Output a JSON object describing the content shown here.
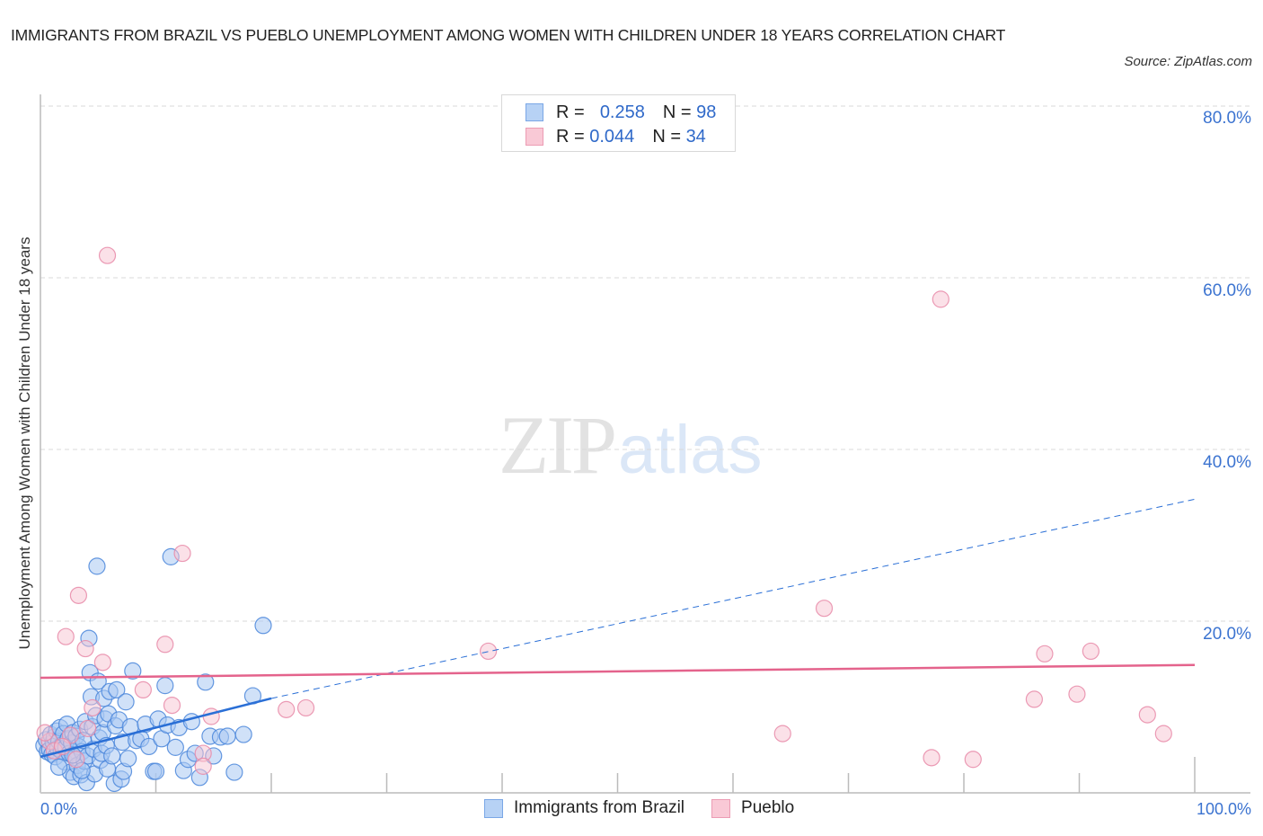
{
  "header": {
    "title": "IMMIGRANTS FROM BRAZIL VS PUEBLO UNEMPLOYMENT AMONG WOMEN WITH CHILDREN UNDER 18 YEARS CORRELATION CHART",
    "source": "Source: ZipAtlas.com"
  },
  "watermark": {
    "zip": "ZIP",
    "atlas": "atlas"
  },
  "legend": {
    "rows": [
      {
        "r_label": "R =",
        "r_value": "0.258",
        "n_label": "N =",
        "n_value": "98",
        "color": "#b7d2f5"
      },
      {
        "r_label": "R =",
        "r_value": "0.044",
        "n_label": "N =",
        "n_value": "34",
        "color": "#f9c9d6"
      }
    ],
    "series": [
      {
        "label": "Immigrants from Brazil",
        "color": "#b7d2f5"
      },
      {
        "label": "Pueblo",
        "color": "#f9c9d6"
      }
    ]
  },
  "axes": {
    "ylabel": "Unemployment Among Women with Children Under 18 years",
    "y_ticks": [
      "80.0%",
      "60.0%",
      "40.0%",
      "20.0%"
    ],
    "x_ticks": [
      "0.0%",
      "100.0%"
    ]
  },
  "colors": {
    "blue_fill": "#a9c8f2",
    "blue_stroke": "#4a86da",
    "blue_line": "#2a6fd6",
    "pink_fill": "#f7c3d2",
    "pink_stroke": "#e88aa8",
    "pink_line": "#e4638c",
    "tick_label": "#3b73d0",
    "grid": "#d9d9d9"
  },
  "chart_data": {
    "type": "scatter",
    "title": "IMMIGRANTS FROM BRAZIL VS PUEBLO UNEMPLOYMENT AMONG WOMEN WITH CHILDREN UNDER 18 YEARS CORRELATION CHART",
    "xlabel": "",
    "ylabel": "Unemployment Among Women with Children Under 18 years",
    "xlim": [
      0,
      100
    ],
    "ylim": [
      0,
      80
    ],
    "x_tick_labels": [
      "0.0%",
      "100.0%"
    ],
    "y_tick_labels": [
      "20.0%",
      "40.0%",
      "60.0%",
      "80.0%"
    ],
    "grid": true,
    "legend_position": "top-center and bottom",
    "series": [
      {
        "name": "Immigrants from Brazil",
        "R": 0.258,
        "N": 98,
        "trend": {
          "x0": 0,
          "y0": 4.2,
          "x1": 20,
          "y1": 11.0,
          "dashed_to_x": 100,
          "dashed_to_y": 34.2
        },
        "points": [
          [
            0.3,
            5.5
          ],
          [
            0.5,
            6.2
          ],
          [
            0.6,
            4.8
          ],
          [
            0.8,
            5.0
          ],
          [
            0.9,
            6.8
          ],
          [
            1.0,
            4.5
          ],
          [
            1.1,
            5.9
          ],
          [
            1.2,
            6.5
          ],
          [
            1.3,
            4.2
          ],
          [
            1.4,
            7.2
          ],
          [
            1.5,
            5.2
          ],
          [
            1.6,
            6.0
          ],
          [
            1.7,
            7.6
          ],
          [
            1.8,
            4.9
          ],
          [
            1.9,
            5.6
          ],
          [
            2.0,
            6.9
          ],
          [
            2.1,
            3.6
          ],
          [
            2.2,
            5.3
          ],
          [
            2.3,
            8.0
          ],
          [
            2.4,
            6.3
          ],
          [
            2.5,
            4.6
          ],
          [
            2.6,
            2.4
          ],
          [
            2.7,
            5.8
          ],
          [
            2.8,
            7.0
          ],
          [
            2.9,
            1.9
          ],
          [
            3.0,
            4.1
          ],
          [
            3.1,
            6.6
          ],
          [
            3.2,
            3.2
          ],
          [
            3.3,
            5.4
          ],
          [
            3.4,
            7.4
          ],
          [
            3.5,
            2.1
          ],
          [
            3.6,
            4.8
          ],
          [
            3.7,
            6.1
          ],
          [
            3.8,
            3.7
          ],
          [
            3.9,
            8.3
          ],
          [
            4.0,
            1.2
          ],
          [
            4.1,
            4.3
          ],
          [
            4.2,
            18.0
          ],
          [
            4.3,
            14.0
          ],
          [
            4.4,
            11.2
          ],
          [
            4.5,
            7.7
          ],
          [
            4.6,
            5.1
          ],
          [
            4.7,
            2.2
          ],
          [
            4.8,
            9.0
          ],
          [
            4.9,
            26.4
          ],
          [
            5.0,
            13.0
          ],
          [
            5.1,
            6.4
          ],
          [
            5.2,
            3.8
          ],
          [
            5.3,
            4.6
          ],
          [
            5.4,
            7.0
          ],
          [
            5.5,
            11.0
          ],
          [
            5.6,
            8.6
          ],
          [
            5.7,
            5.5
          ],
          [
            5.8,
            2.8
          ],
          [
            5.9,
            9.2
          ],
          [
            6.0,
            11.8
          ],
          [
            6.2,
            4.3
          ],
          [
            6.4,
            1.1
          ],
          [
            6.5,
            7.8
          ],
          [
            6.6,
            12.0
          ],
          [
            6.8,
            8.5
          ],
          [
            7.0,
            1.6
          ],
          [
            7.1,
            5.9
          ],
          [
            7.2,
            2.5
          ],
          [
            7.4,
            10.6
          ],
          [
            7.6,
            4.0
          ],
          [
            7.8,
            7.7
          ],
          [
            8.0,
            14.2
          ],
          [
            8.3,
            6.1
          ],
          [
            8.7,
            6.3
          ],
          [
            9.1,
            8.0
          ],
          [
            9.4,
            5.4
          ],
          [
            9.8,
            2.5
          ],
          [
            10.0,
            2.5
          ],
          [
            10.2,
            8.6
          ],
          [
            10.5,
            6.3
          ],
          [
            10.8,
            12.5
          ],
          [
            11.0,
            7.9
          ],
          [
            11.3,
            27.5
          ],
          [
            11.7,
            5.3
          ],
          [
            12.0,
            7.6
          ],
          [
            12.4,
            2.6
          ],
          [
            12.8,
            3.9
          ],
          [
            13.1,
            8.3
          ],
          [
            13.4,
            4.6
          ],
          [
            13.8,
            1.8
          ],
          [
            14.3,
            12.9
          ],
          [
            14.7,
            6.6
          ],
          [
            15.0,
            4.3
          ],
          [
            15.6,
            6.5
          ],
          [
            16.2,
            6.6
          ],
          [
            16.8,
            2.4
          ],
          [
            17.6,
            6.8
          ],
          [
            18.4,
            11.3
          ],
          [
            19.3,
            19.5
          ],
          [
            1.6,
            3.0
          ],
          [
            2.8,
            4.4
          ],
          [
            3.6,
            2.6
          ]
        ]
      },
      {
        "name": "Pueblo",
        "R": 0.044,
        "N": 34,
        "trend": {
          "x0": 0,
          "y0": 13.4,
          "x1": 100,
          "y1": 14.9
        },
        "points": [
          [
            5.8,
            62.6
          ],
          [
            78.0,
            57.5
          ],
          [
            12.3,
            27.9
          ],
          [
            3.3,
            23.0
          ],
          [
            2.2,
            18.2
          ],
          [
            3.9,
            16.8
          ],
          [
            10.8,
            17.3
          ],
          [
            5.4,
            15.2
          ],
          [
            8.9,
            12.0
          ],
          [
            38.8,
            16.5
          ],
          [
            67.9,
            21.5
          ],
          [
            87.0,
            16.2
          ],
          [
            91.0,
            16.5
          ],
          [
            11.4,
            10.2
          ],
          [
            14.8,
            8.9
          ],
          [
            21.3,
            9.7
          ],
          [
            23.0,
            9.9
          ],
          [
            86.1,
            10.9
          ],
          [
            89.8,
            11.5
          ],
          [
            95.9,
            9.1
          ],
          [
            97.3,
            6.9
          ],
          [
            64.3,
            6.9
          ],
          [
            77.2,
            4.1
          ],
          [
            80.8,
            3.9
          ],
          [
            14.1,
            4.6
          ],
          [
            14.1,
            3.1
          ],
          [
            4.5,
            9.9
          ],
          [
            4.1,
            7.5
          ],
          [
            0.8,
            6.0
          ],
          [
            1.2,
            4.9
          ],
          [
            2.6,
            6.7
          ],
          [
            3.1,
            3.9
          ],
          [
            0.4,
            7.0
          ],
          [
            1.9,
            5.4
          ]
        ]
      }
    ]
  }
}
